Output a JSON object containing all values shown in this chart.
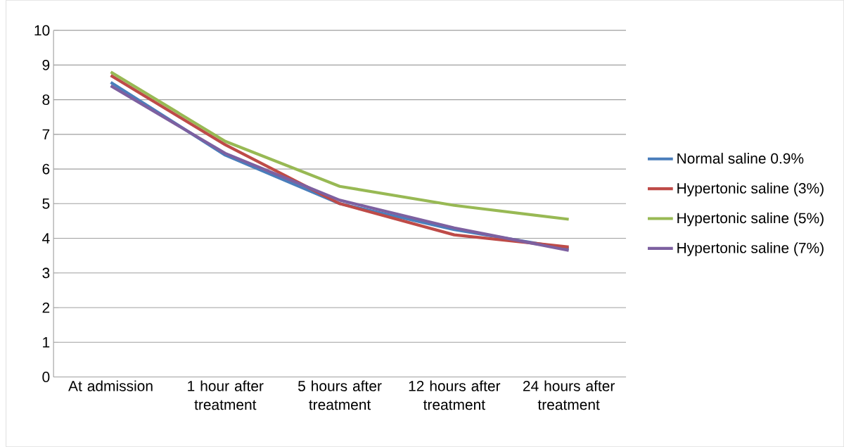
{
  "chart_data": {
    "type": "line",
    "categories": [
      "At admission",
      "1 hour after treatment",
      "5 hours after treatment",
      "12 hours after treatment",
      "24 hours after treatment"
    ],
    "series": [
      {
        "name": "Normal saline 0.9%",
        "color": "#4a7ebb",
        "values": [
          8.5,
          6.4,
          5.0,
          4.25,
          3.7
        ]
      },
      {
        "name": "Hypertonic saline (3%)",
        "color": "#be4b48",
        "values": [
          8.7,
          6.7,
          5.0,
          4.1,
          3.75
        ]
      },
      {
        "name": "Hypertonic saline (5%)",
        "color": "#98b954",
        "values": [
          8.8,
          6.8,
          5.5,
          4.95,
          4.55
        ]
      },
      {
        "name": "Hypertonic saline (7%)",
        "color": "#7d60a0",
        "values": [
          8.4,
          6.45,
          5.1,
          4.3,
          3.65
        ]
      }
    ],
    "ylim": [
      0,
      10
    ],
    "yticks": [
      0,
      1,
      2,
      3,
      4,
      5,
      6,
      7,
      8,
      9,
      10
    ],
    "grid": "y",
    "legend": "right",
    "marker": "none"
  }
}
